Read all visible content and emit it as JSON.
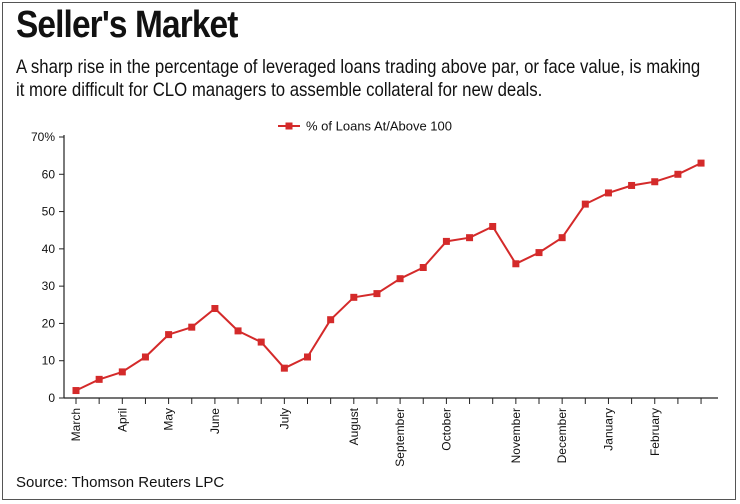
{
  "title": "Seller's Market",
  "subtitle": "A sharp rise in the percentage of leveraged loans trading above par, or face value, is making it more difficult for CLO managers to assemble collateral for new deals.",
  "source": "Source: Thomson Reuters LPC",
  "chart_data": {
    "type": "line",
    "series": [
      {
        "name": "% of Loans At/Above 100",
        "color": "#d42a2a",
        "values": [
          2,
          5,
          7,
          11,
          17,
          19,
          24,
          18,
          15,
          8,
          11,
          21,
          27,
          28,
          32,
          35,
          42,
          43,
          46,
          36,
          39,
          43,
          52,
          55,
          57,
          58,
          60,
          63
        ]
      }
    ],
    "x_month_labels": [
      {
        "label": "March",
        "index": 0
      },
      {
        "label": "April",
        "index": 2
      },
      {
        "label": "May",
        "index": 4
      },
      {
        "label": "June",
        "index": 6
      },
      {
        "label": "July",
        "index": 9
      },
      {
        "label": "August",
        "index": 12
      },
      {
        "label": "September",
        "index": 14
      },
      {
        "label": "October",
        "index": 16
      },
      {
        "label": "November",
        "index": 19
      },
      {
        "label": "December",
        "index": 21
      },
      {
        "label": "January",
        "index": 23
      },
      {
        "label": "February",
        "index": 25
      }
    ],
    "y_ticks": [
      0,
      10,
      20,
      30,
      40,
      50,
      60,
      70
    ],
    "y_tick_labels": [
      "0",
      "10",
      "20",
      "30",
      "40",
      "50",
      "60",
      "70%"
    ],
    "ylim": [
      0,
      70
    ],
    "legend_position": "top-center",
    "grid": false
  }
}
